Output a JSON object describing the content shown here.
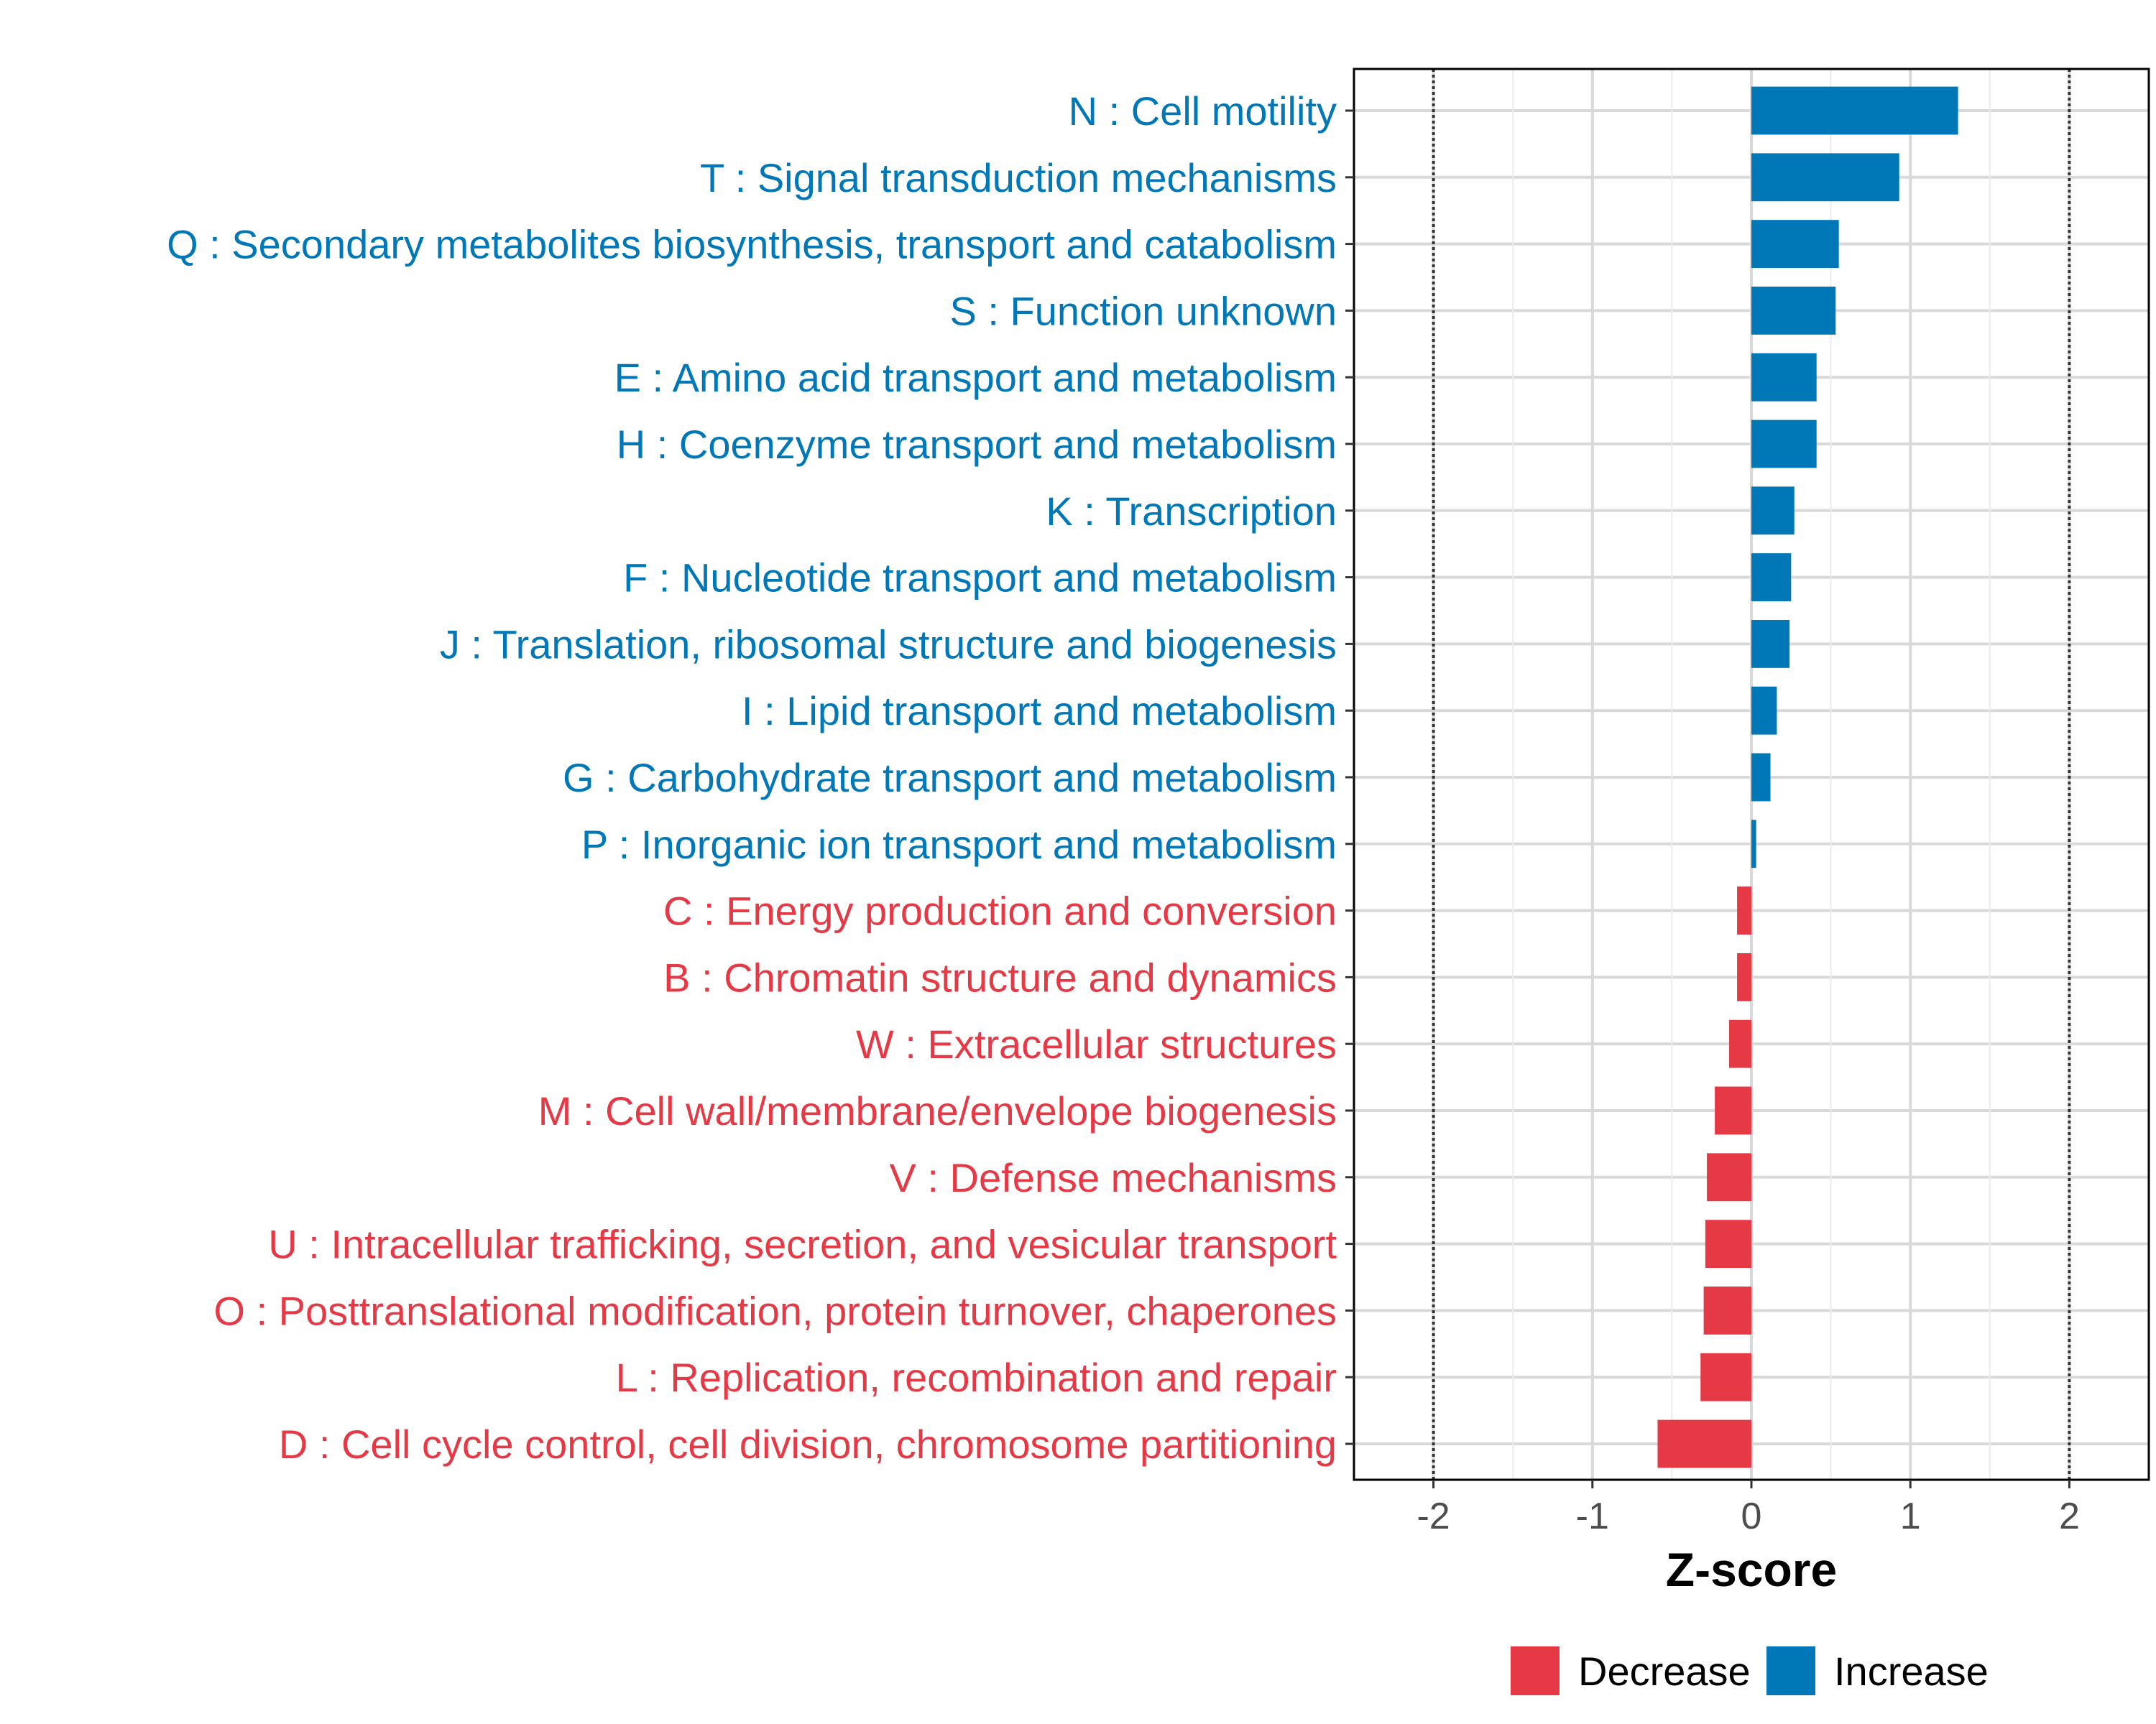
{
  "chart_data": {
    "type": "bar",
    "orientation": "horizontal",
    "xlabel": "Z-score",
    "xlim": [
      -2.5,
      2.5
    ],
    "xticks": [
      -2,
      -1,
      0,
      1,
      2
    ],
    "xtick_labels": [
      "-2",
      "-1",
      "0",
      "1",
      "2"
    ],
    "reference_lines": [
      -2,
      2
    ],
    "grid": true,
    "categories": [
      "N : Cell motility",
      "T : Signal transduction mechanisms",
      "Q : Secondary metabolites biosynthesis, transport and catabolism",
      "S : Function unknown",
      "E : Amino acid transport and metabolism",
      "H : Coenzyme transport and metabolism",
      "K : Transcription",
      "F : Nucleotide transport and metabolism",
      "J : Translation, ribosomal structure and biogenesis",
      "I : Lipid transport and metabolism",
      "G : Carbohydrate transport and metabolism",
      "P : Inorganic ion transport and metabolism",
      "C : Energy production and conversion",
      "B : Chromatin structure and dynamics",
      "W : Extracellular structures",
      "M : Cell wall/membrane/envelope biogenesis",
      "V : Defense mechanisms",
      "U : Intracellular trafficking, secretion, and vesicular transport",
      "O : Posttranslational modification, protein turnover, chaperones",
      "L : Replication, recombination and repair",
      "D : Cell cycle control, cell division, chromosome partitioning"
    ],
    "values": [
      1.3,
      0.93,
      0.55,
      0.53,
      0.41,
      0.41,
      0.27,
      0.25,
      0.24,
      0.16,
      0.12,
      0.03,
      -0.09,
      -0.09,
      -0.14,
      -0.23,
      -0.28,
      -0.29,
      -0.3,
      -0.32,
      -0.59
    ],
    "groups": [
      "Increase",
      "Increase",
      "Increase",
      "Increase",
      "Increase",
      "Increase",
      "Increase",
      "Increase",
      "Increase",
      "Increase",
      "Increase",
      "Increase",
      "Decrease",
      "Decrease",
      "Decrease",
      "Decrease",
      "Decrease",
      "Decrease",
      "Decrease",
      "Decrease",
      "Decrease"
    ],
    "colors": {
      "Decrease": "#E63946",
      "Increase": "#0077B6"
    },
    "legend": {
      "placement": "bottom",
      "entries": [
        {
          "label": "Decrease",
          "color": "#E63946"
        },
        {
          "label": "Increase",
          "color": "#0077B6"
        }
      ]
    }
  }
}
